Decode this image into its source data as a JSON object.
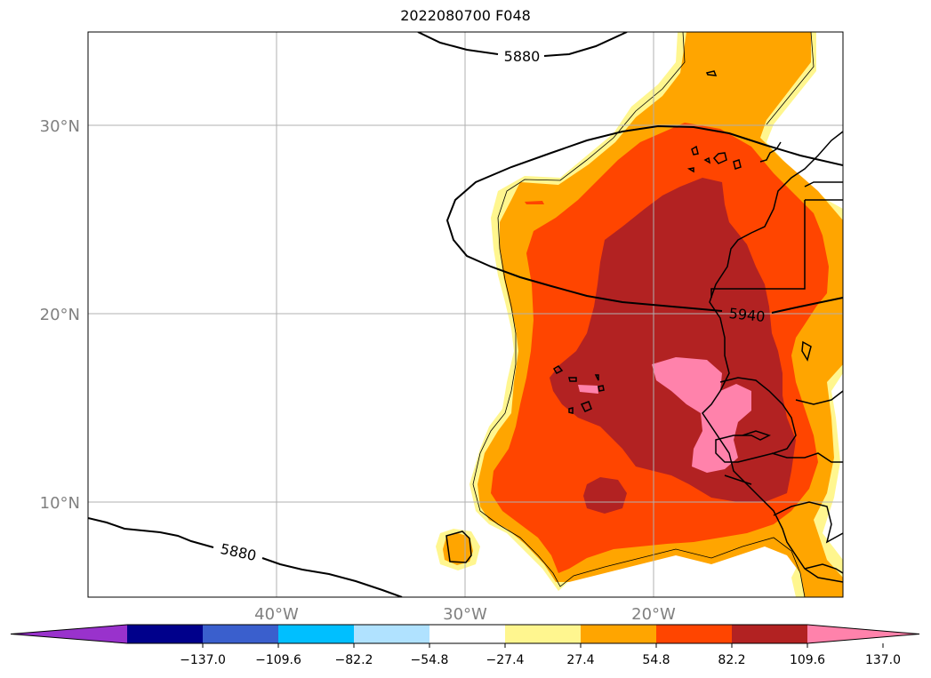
{
  "title": "2022080700 F048",
  "map": {
    "lat_labels": [
      "30°N",
      "20°N",
      "10°N"
    ],
    "lon_labels": [
      "40°W",
      "30°W",
      "20°W"
    ],
    "contour_labels": [
      "5880",
      "5940",
      "5880"
    ]
  },
  "colorbar": {
    "colors": [
      "#9932cc",
      "#00008b",
      "#3a5fcd",
      "#00bfff",
      "#b0e2ff",
      "#ffffff",
      "#fff68f",
      "#ffa500",
      "#ff4500",
      "#b22222",
      "#ff82ab"
    ],
    "tick_labels": [
      "−137.0",
      "−109.6",
      "−82.2",
      "−54.8",
      "−27.4",
      "27.4",
      "54.8",
      "82.2",
      "109.6",
      "137.0"
    ]
  }
}
